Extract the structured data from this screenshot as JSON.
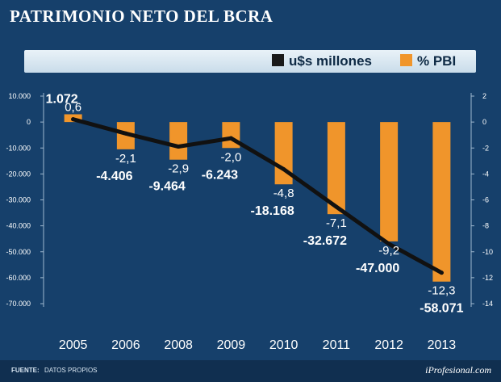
{
  "title": "PATRIMONIO NETO DEL BCRA",
  "footer": {
    "source_label": "FUENTE:",
    "source_value": "DATOS PROPIOS",
    "brand": "iProfesional.com"
  },
  "legend": [
    {
      "name": "u$s millones",
      "color": "#1a1a1a"
    },
    {
      "name": "% PBI",
      "color": "#f0952b"
    }
  ],
  "colors": {
    "background": "#16406b",
    "bar": "#f0952b",
    "line": "#111111"
  },
  "chart_data": {
    "type": "bar+line",
    "title": "PATRIMONIO NETO DEL BCRA",
    "categories": [
      "2005",
      "2006",
      "2008",
      "2009",
      "2010",
      "2011",
      "2012",
      "2013"
    ],
    "series": [
      {
        "name": "u$s millones",
        "type": "line",
        "axis": "left",
        "values": [
          1072,
          -4406,
          -9464,
          -6243,
          -18168,
          -32672,
          -47000,
          -58071
        ],
        "labels": [
          "1.072",
          "-4.406",
          "-9.464",
          "-6.243",
          "-18.168",
          "-32.672",
          "-47.000",
          "-58.071"
        ]
      },
      {
        "name": "% PBI",
        "type": "bar",
        "axis": "right",
        "values": [
          0.6,
          -2.1,
          -2.9,
          -2.0,
          -4.8,
          -7.1,
          -9.2,
          -12.3
        ],
        "labels": [
          "0,6",
          "-2,1",
          "-2,9",
          "-2,0",
          "-4,8",
          "-7,1",
          "-9,2",
          "-12,3"
        ]
      }
    ],
    "left_axis": {
      "ticks": [
        10000,
        0,
        -10000,
        -20000,
        -30000,
        -40000,
        -50000,
        -60000,
        -70000
      ],
      "tick_labels": [
        "10.000",
        "0",
        "-10.000",
        "-20.000",
        "-30.000",
        "-40.000",
        "-50.000",
        "-60.000",
        "-70.000"
      ],
      "ylim": [
        -70000,
        10000
      ]
    },
    "right_axis": {
      "ticks": [
        2,
        0,
        -2,
        -4,
        -6,
        -8,
        -10,
        -12,
        -14
      ],
      "tick_labels": [
        "2",
        "0",
        "-2",
        "-4",
        "-6",
        "-8",
        "-10",
        "-12",
        "-14"
      ],
      "ylim": [
        -14,
        2
      ]
    },
    "legend_position": "top-right",
    "grid": false
  }
}
